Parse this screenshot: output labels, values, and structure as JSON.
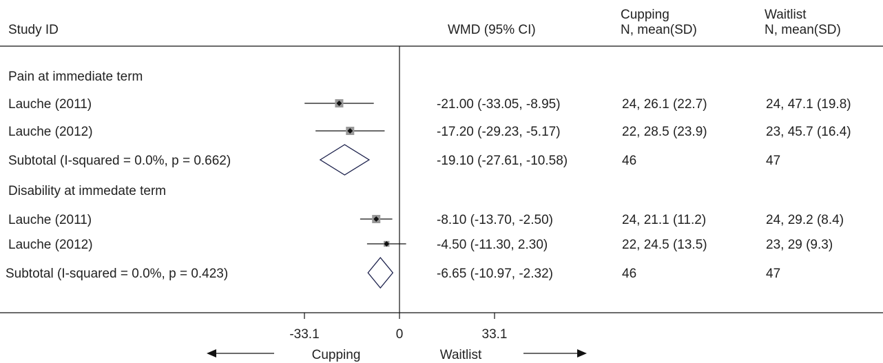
{
  "chart_data": {
    "type": "forest",
    "headers": {
      "study": "Study  ID",
      "effect": "WMD (95% CI)",
      "group1": [
        "Cupping",
        "N, mean(SD)"
      ],
      "group2": [
        "Waitlist",
        "N, mean(SD)"
      ]
    },
    "xlim": [
      -33.1,
      33.1
    ],
    "ticks": [
      {
        "value": -33.1,
        "label": "-33.1"
      },
      {
        "value": 0,
        "label": "0"
      },
      {
        "value": 33.1,
        "label": "33.1"
      }
    ],
    "favours_left": "Cupping",
    "favours_right": "Waitlist",
    "rows": [
      {
        "kind": "header",
        "label": "Pain at immediate term"
      },
      {
        "kind": "study",
        "label": "Lauche (2011)",
        "est": -21.0,
        "lo": -33.05,
        "hi": -8.95,
        "weight": 1.0,
        "ci_text": "-21.00 (-33.05, -8.95)",
        "g1": "24, 26.1 (22.7)",
        "g2": "24, 47.1 (19.8)"
      },
      {
        "kind": "study",
        "label": "Lauche (2012)",
        "est": -17.2,
        "lo": -29.23,
        "hi": -5.17,
        "weight": 1.0,
        "ci_text": "-17.20 (-29.23, -5.17)",
        "g1": "22, 28.5 (23.9)",
        "g2": "23, 45.7 (16.4)"
      },
      {
        "kind": "subtotal",
        "label": "Subtotal  (I-squared = 0.0%, p = 0.662)",
        "est": -19.1,
        "lo": -27.61,
        "hi": -10.58,
        "ci_text": "-19.10 (-27.61, -10.58)",
        "g1": "46",
        "g2": "47"
      },
      {
        "kind": "header",
        "label": "Disability at immedate term"
      },
      {
        "kind": "study",
        "label": "Lauche (2011)",
        "est": -8.1,
        "lo": -13.7,
        "hi": -2.5,
        "weight": 1.0,
        "ci_text": "-8.10 (-13.70, -2.50)",
        "g1": "24, 21.1 (11.2)",
        "g2": "24, 29.2 (8.4)"
      },
      {
        "kind": "study",
        "label": "Lauche (2012)",
        "est": -4.5,
        "lo": -11.3,
        "hi": 2.3,
        "weight": 0.7,
        "ci_text": "-4.50 (-11.30, 2.30)",
        "g1": "22, 24.5 (13.5)",
        "g2": "23, 29 (9.3)"
      },
      {
        "kind": "subtotal",
        "label": "Subtotal  (I-squared = 0.0%, p = 0.423)",
        "est": -6.65,
        "lo": -10.97,
        "hi": -2.32,
        "ci_text": "-6.65 (-10.97, -2.32)",
        "g1": "46",
        "g2": "47"
      }
    ]
  }
}
